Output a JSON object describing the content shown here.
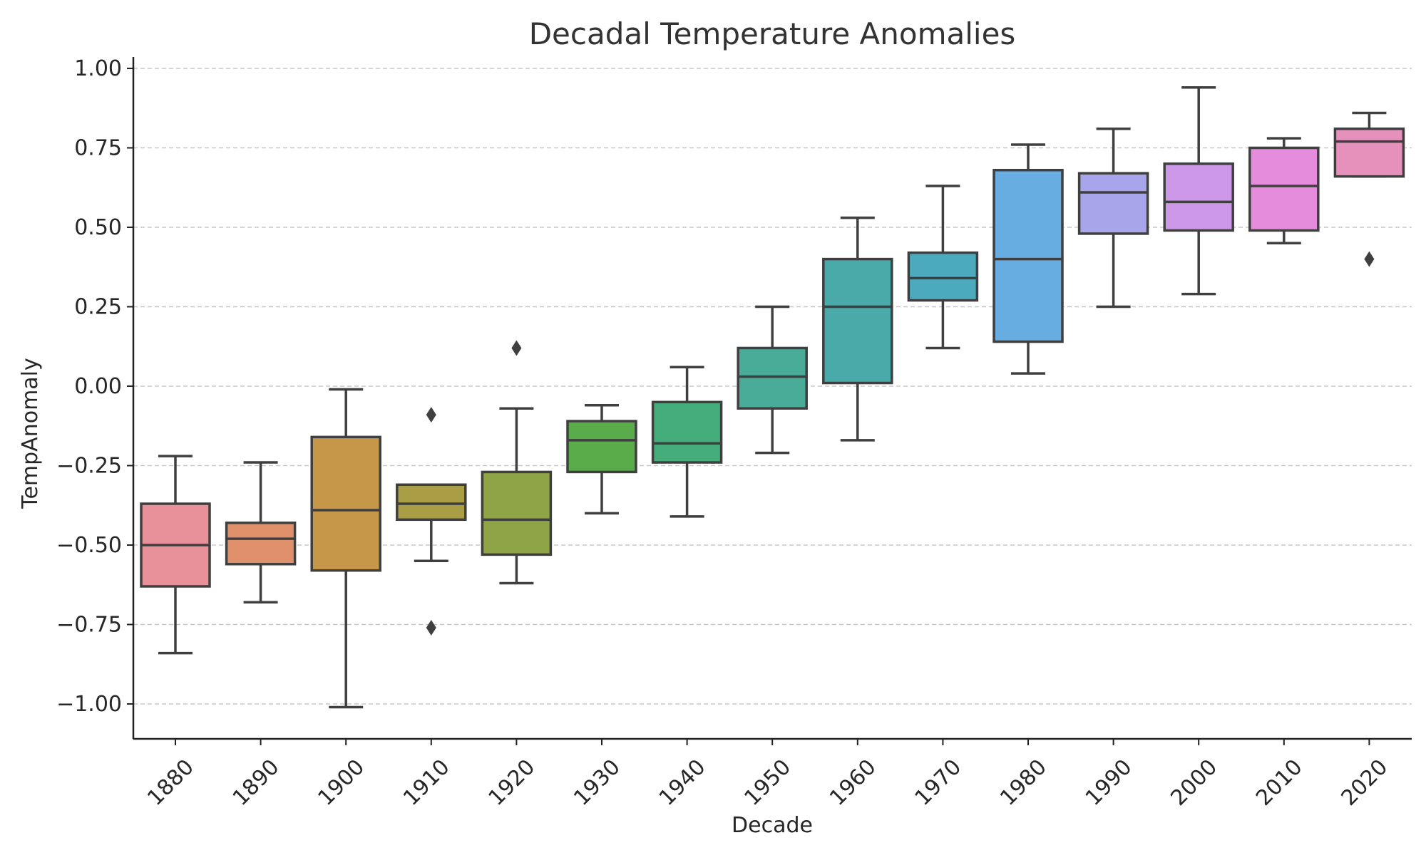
{
  "chart_data": {
    "type": "box",
    "title": "Decadal Temperature Anomalies",
    "xlabel": "Decade",
    "ylabel": "TempAnomaly",
    "ylim": [
      -1.11,
      1.04
    ],
    "yticks": [
      -1.0,
      -0.75,
      -0.5,
      -0.25,
      0.0,
      0.25,
      0.5,
      0.75,
      1.0
    ],
    "ytick_labels": [
      "−1.00",
      "−0.75",
      "−0.50",
      "−0.25",
      "0.00",
      "0.25",
      "0.50",
      "0.75",
      "1.00"
    ],
    "grid": "horizontal dashed",
    "categories": [
      "1880",
      "1890",
      "1900",
      "1910",
      "1920",
      "1930",
      "1940",
      "1950",
      "1960",
      "1970",
      "1980",
      "1990",
      "2000",
      "2010",
      "2020"
    ],
    "boxes": [
      {
        "decade": "1880",
        "whislo": -0.84,
        "q1": -0.63,
        "med": -0.5,
        "q3": -0.37,
        "whishi": -0.22,
        "fliers": [],
        "color": "#e8919b"
      },
      {
        "decade": "1890",
        "whislo": -0.68,
        "q1": -0.56,
        "med": -0.48,
        "q3": -0.43,
        "whishi": -0.24,
        "fliers": [],
        "color": "#e1906c"
      },
      {
        "decade": "1900",
        "whislo": -1.01,
        "q1": -0.58,
        "med": -0.39,
        "q3": -0.16,
        "whishi": -0.01,
        "fliers": [],
        "color": "#c69748"
      },
      {
        "decade": "1910",
        "whislo": -0.55,
        "q1": -0.42,
        "med": -0.37,
        "q3": -0.31,
        "whishi": -0.31,
        "fliers": [
          -0.09,
          -0.76
        ],
        "color": "#a99e45"
      },
      {
        "decade": "1920",
        "whislo": -0.62,
        "q1": -0.53,
        "med": -0.42,
        "q3": -0.27,
        "whishi": -0.07,
        "fliers": [
          0.12
        ],
        "color": "#8fa446"
      },
      {
        "decade": "1930",
        "whislo": -0.4,
        "q1": -0.27,
        "med": -0.17,
        "q3": -0.11,
        "whishi": -0.06,
        "fliers": [],
        "color": "#5aac4a"
      },
      {
        "decade": "1940",
        "whislo": -0.41,
        "q1": -0.24,
        "med": -0.18,
        "q3": -0.05,
        "whishi": 0.06,
        "fliers": [],
        "color": "#45ad7c"
      },
      {
        "decade": "1950",
        "whislo": -0.21,
        "q1": -0.07,
        "med": 0.03,
        "q3": 0.12,
        "whishi": 0.25,
        "fliers": [],
        "color": "#48ac99"
      },
      {
        "decade": "1960",
        "whislo": -0.17,
        "q1": 0.01,
        "med": 0.25,
        "q3": 0.4,
        "whishi": 0.53,
        "fliers": [],
        "color": "#4aaaaa"
      },
      {
        "decade": "1970",
        "whislo": 0.12,
        "q1": 0.27,
        "med": 0.34,
        "q3": 0.42,
        "whishi": 0.63,
        "fliers": [],
        "color": "#4caabf"
      },
      {
        "decade": "1980",
        "whislo": 0.04,
        "q1": 0.14,
        "med": 0.4,
        "q3": 0.68,
        "whishi": 0.76,
        "fliers": [],
        "color": "#67ade2"
      },
      {
        "decade": "1990",
        "whislo": 0.25,
        "q1": 0.48,
        "med": 0.61,
        "q3": 0.67,
        "whishi": 0.81,
        "fliers": [],
        "color": "#a8a6ea"
      },
      {
        "decade": "2000",
        "whislo": 0.29,
        "q1": 0.49,
        "med": 0.58,
        "q3": 0.7,
        "whishi": 0.94,
        "fliers": [],
        "color": "#cd98e8"
      },
      {
        "decade": "2010",
        "whislo": 0.45,
        "q1": 0.49,
        "med": 0.63,
        "q3": 0.75,
        "whishi": 0.78,
        "fliers": [],
        "color": "#e68cdc"
      },
      {
        "decade": "2020",
        "whislo": 0.66,
        "q1": 0.66,
        "med": 0.77,
        "q3": 0.81,
        "whishi": 0.86,
        "fliers": [
          0.4
        ],
        "color": "#e690bc"
      }
    ]
  }
}
